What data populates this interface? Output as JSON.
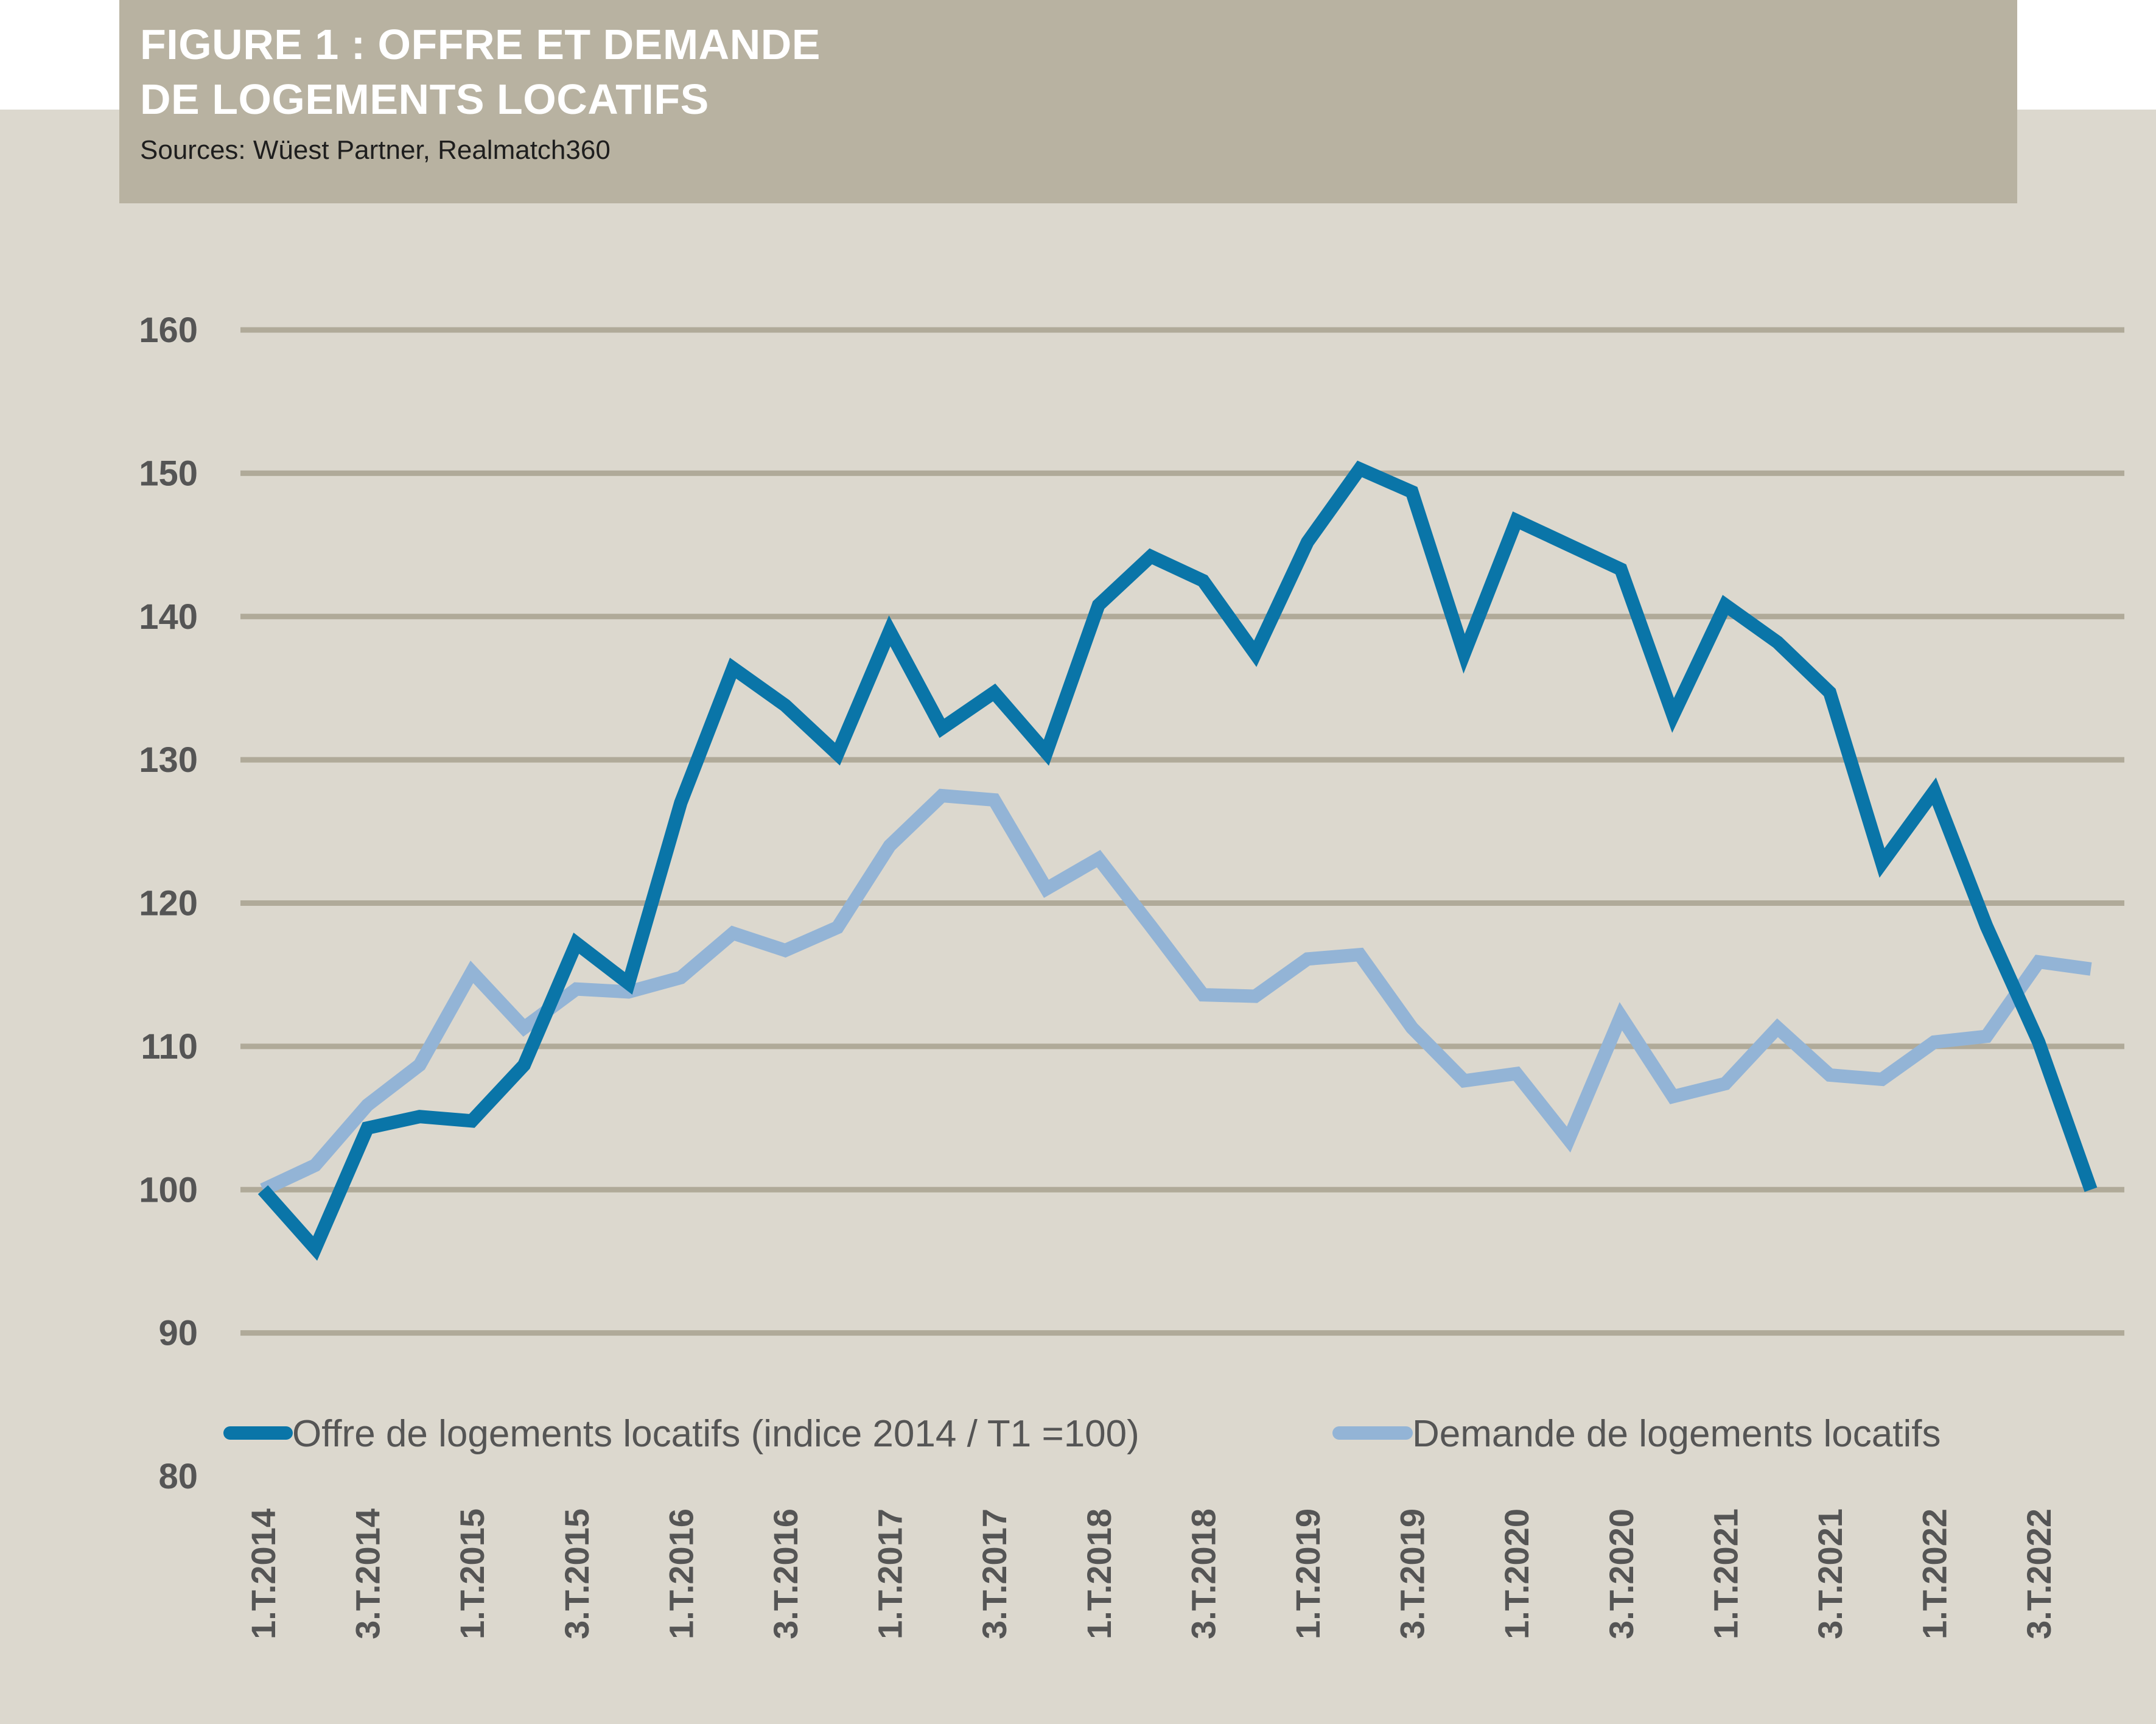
{
  "header": {
    "title_line1": "FIGURE 1 : OFFRE ET DEMANDE",
    "title_line2": "DE LOGEMENTS LOCATIFS",
    "source": "Sources: Wüest Partner, Realmatch360"
  },
  "colors": {
    "panel_background": "#dcd8ce",
    "header_background": "#b8b2a1",
    "gridline": "#b0aa99",
    "series_offre": "#0a75a8",
    "series_demande": "#93b4d6",
    "axis_text": "#555555"
  },
  "chart_data": {
    "type": "line",
    "title": "FIGURE 1 : OFFRE ET DEMANDE DE LOGEMENTS LOCATIFS",
    "xlabel": "",
    "ylabel": "",
    "ylim": [
      80,
      160
    ],
    "yticks": [
      80,
      90,
      100,
      110,
      120,
      130,
      140,
      150,
      160
    ],
    "grid": true,
    "legend_position": "bottom",
    "tick_labels": [
      "1.T.2014",
      "3.T.2014",
      "1.T.2015",
      "3.T.2015",
      "1.T.2016",
      "3.T.2016",
      "1.T.2017",
      "3.T.2017",
      "1.T.2018",
      "3.T.2018",
      "1.T.2019",
      "3.T.2019",
      "1.T.2020",
      "3.T.2020",
      "1.T.2021",
      "3.T.2021",
      "1.T.2022",
      "3.T.2022"
    ],
    "x": [
      "1.T.2014",
      "2.T.2014",
      "3.T.2014",
      "4.T.2014",
      "1.T.2015",
      "2.T.2015",
      "3.T.2015",
      "4.T.2015",
      "1.T.2016",
      "2.T.2016",
      "3.T.2016",
      "4.T.2016",
      "1.T.2017",
      "2.T.2017",
      "3.T.2017",
      "4.T.2017",
      "1.T.2018",
      "2.T.2018",
      "3.T.2018",
      "4.T.2018",
      "1.T.2019",
      "2.T.2019",
      "3.T.2019",
      "4.T.2019",
      "1.T.2020",
      "2.T.2020",
      "3.T.2020",
      "4.T.2020",
      "1.T.2021",
      "2.T.2021",
      "3.T.2021",
      "4.T.2021",
      "1.T.2022",
      "2.T.2022",
      "3.T.2022",
      "4.T.2022"
    ],
    "series": [
      {
        "name": "Offre de logements locatifs (indice 2014 / T1 =100)",
        "color": "#0a75a8",
        "values": [
          100,
          95.9,
          104.3,
          105.1,
          104.8,
          108.7,
          117.2,
          114.4,
          127,
          136.4,
          133.8,
          130.4,
          139,
          132.2,
          134.7,
          130.5,
          140.8,
          144.2,
          142.5,
          137.4,
          145.2,
          150.3,
          148.7,
          137.4,
          146.7,
          145,
          143.3,
          133.1,
          140.8,
          138.2,
          134.7,
          122.8,
          127.8,
          118.4,
          110.3,
          100
        ]
      },
      {
        "name": "Demande de logements locatifs",
        "color": "#93b4d6",
        "values": [
          100,
          101.7,
          105.9,
          108.7,
          115.2,
          111.3,
          114,
          113.8,
          114.8,
          117.9,
          116.7,
          118.3,
          124,
          127.5,
          127.2,
          121,
          123.1,
          118.4,
          113.6,
          113.5,
          116.1,
          116.4,
          111.3,
          107.6,
          108.1,
          103.5,
          112.1,
          106.5,
          107.4,
          111.3,
          108,
          107.7,
          110.3,
          110.7,
          115.9,
          115.4
        ]
      }
    ]
  }
}
